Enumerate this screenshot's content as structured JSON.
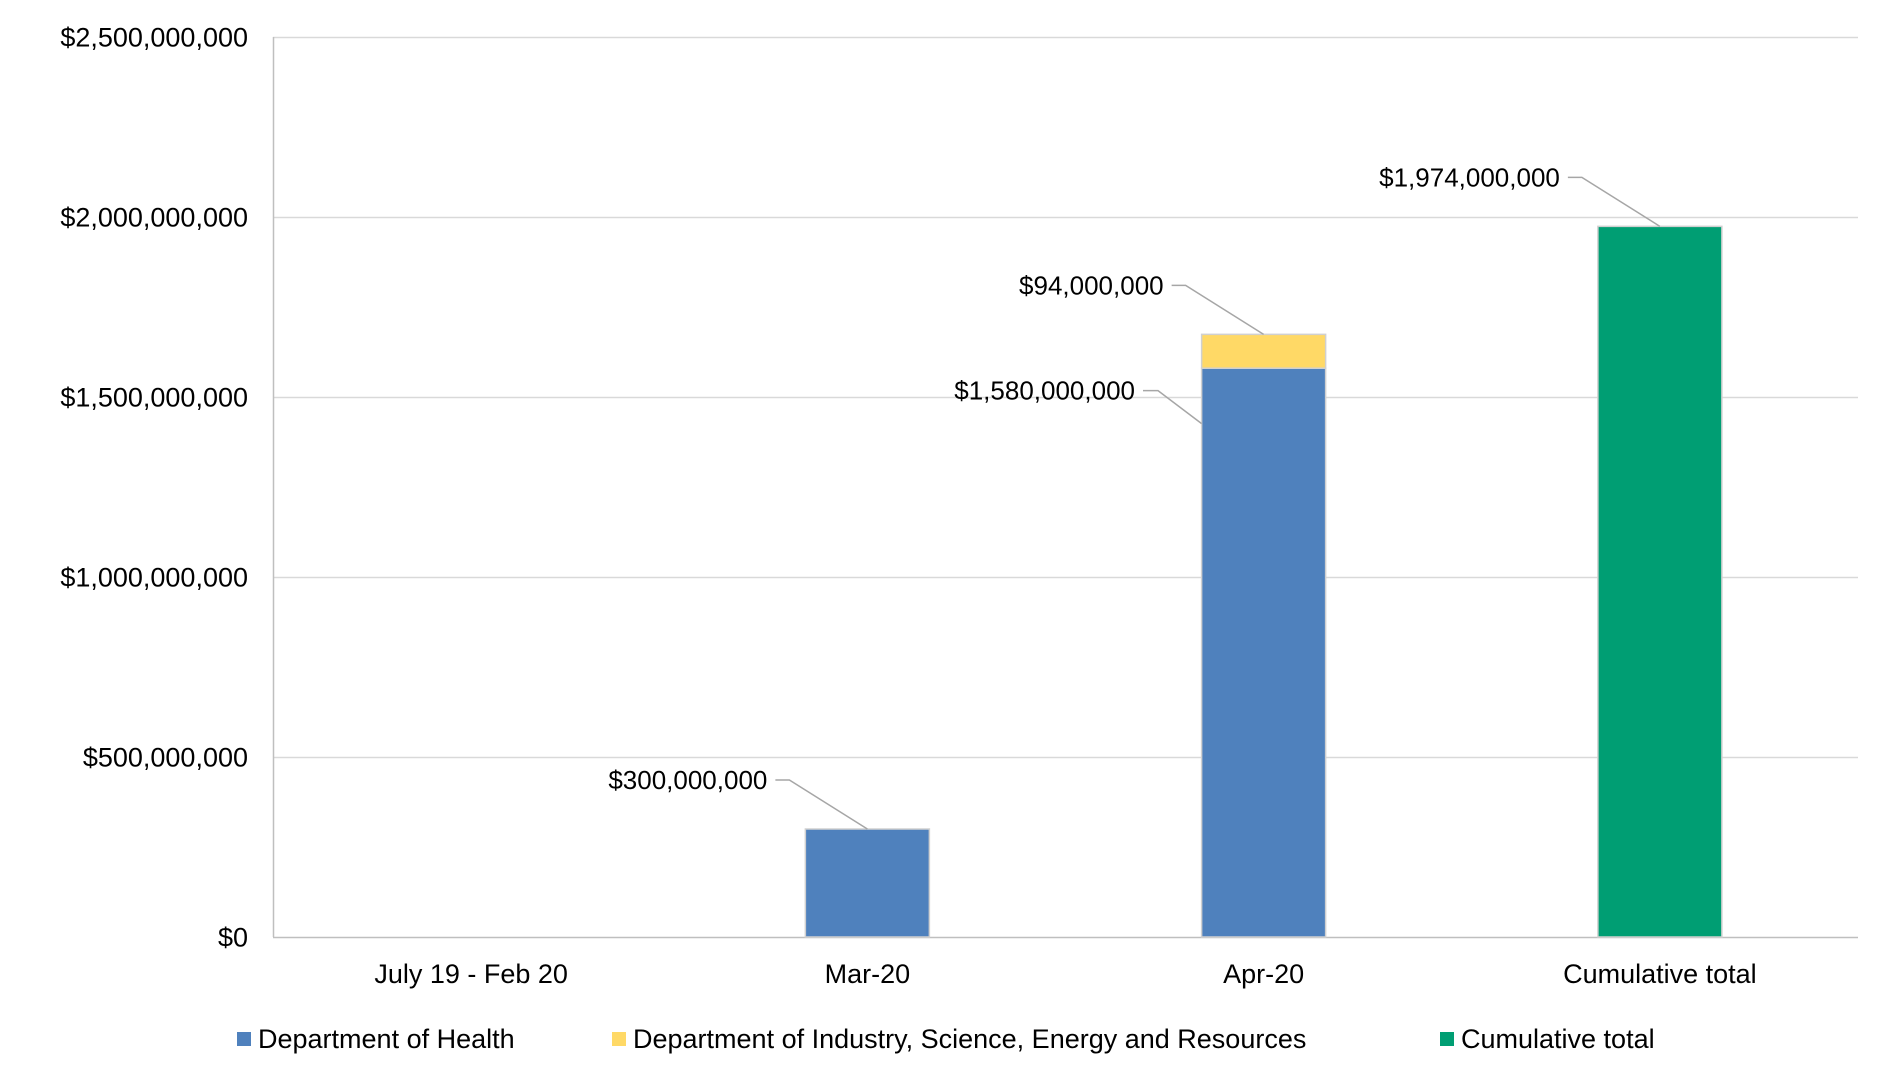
{
  "chart_data": {
    "type": "bar",
    "stacked": true,
    "categories": [
      "July 19 - Feb 20",
      "Mar-20",
      "Apr-20",
      "Cumulative total"
    ],
    "series": [
      {
        "name": "Department of Health",
        "color": "#4f81bd",
        "values": [
          0,
          300000000,
          1580000000,
          0
        ]
      },
      {
        "name": "Department of Industry, Science, Energy and Resources",
        "color": "#ffd966",
        "values": [
          0,
          0,
          94000000,
          0
        ]
      },
      {
        "name": "Cumulative total",
        "color": "#009e73",
        "values": [
          0,
          0,
          0,
          1974000000
        ]
      }
    ],
    "y_ticks": [
      "$0",
      "$500,000,000",
      "$1,000,000,000",
      "$1,500,000,000",
      "$2,000,000,000",
      "$2,500,000,000"
    ],
    "ylim": [
      0,
      2500000000
    ],
    "data_labels": [
      {
        "series": 0,
        "category": 1,
        "text": "$300,000,000"
      },
      {
        "series": 0,
        "category": 2,
        "text": "$1,580,000,000"
      },
      {
        "series": 1,
        "category": 2,
        "text": "$94,000,000"
      },
      {
        "series": 2,
        "category": 3,
        "text": "$1,974,000,000"
      }
    ],
    "grid": true,
    "legend_position": "bottom",
    "title": "",
    "xlabel": "",
    "ylabel": ""
  }
}
